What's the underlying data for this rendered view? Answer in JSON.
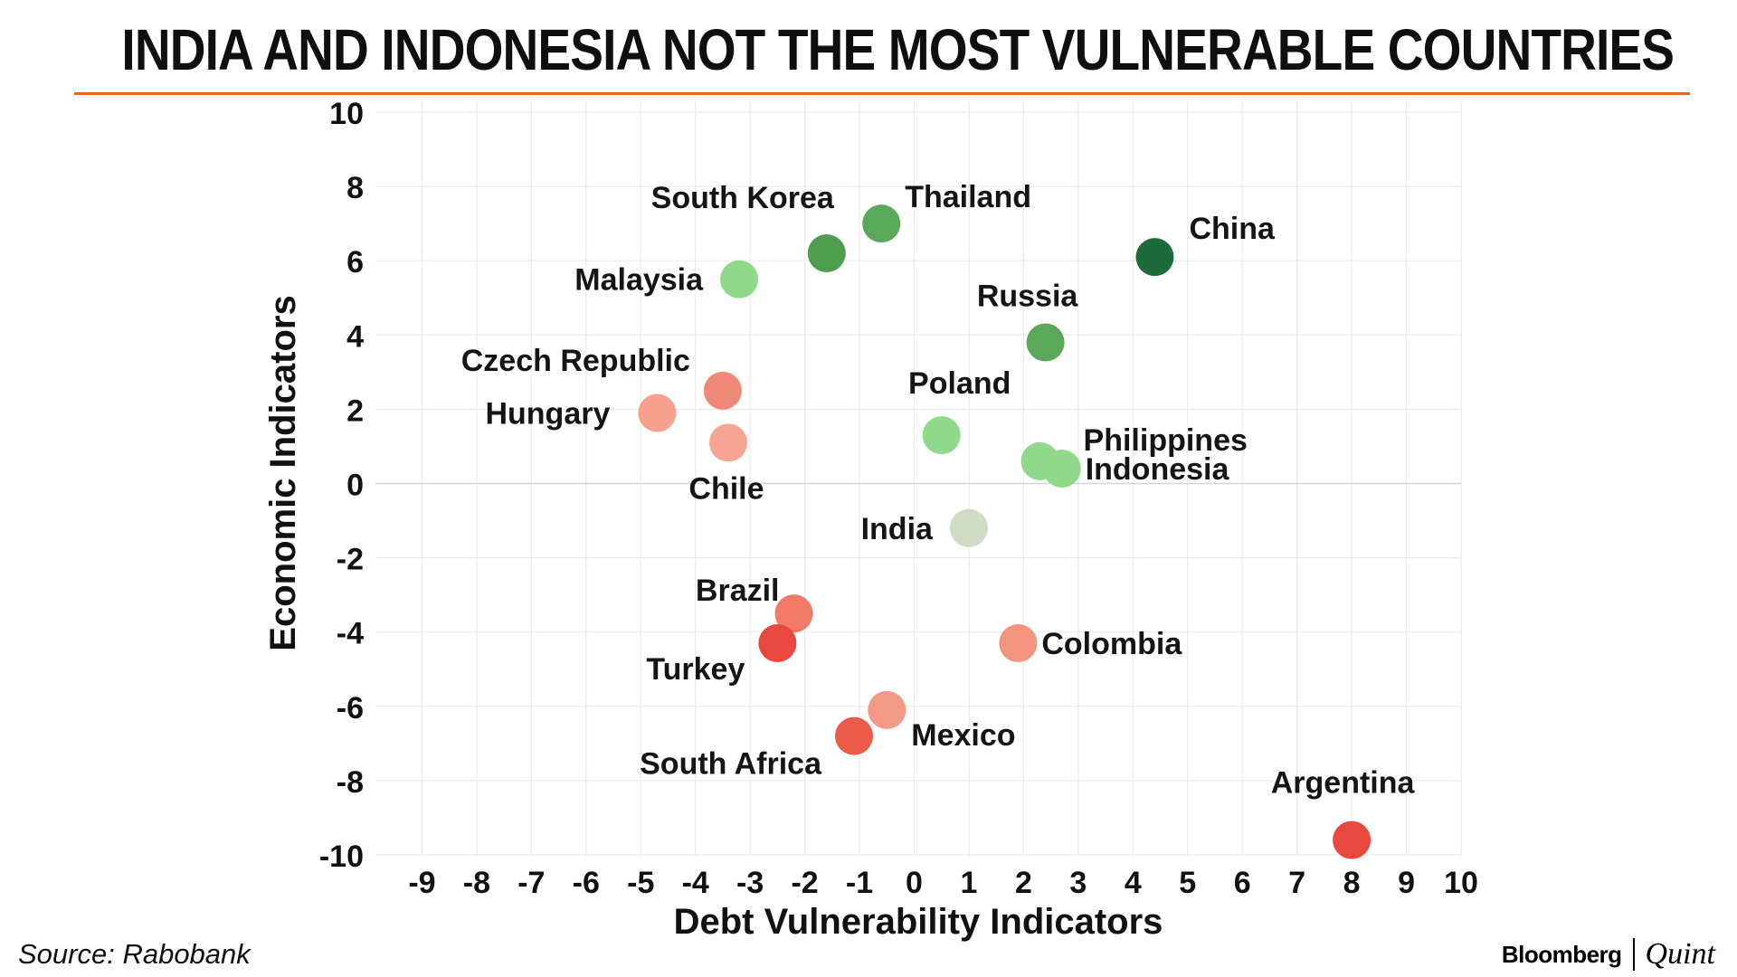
{
  "header": {
    "title": "INDIA AND INDONESIA NOT THE MOST VULNERABLE COUNTRIES"
  },
  "footer": {
    "source": "Source: Rabobank",
    "brand_primary": "Bloomberg",
    "brand_secondary": "Quint"
  },
  "colors": {
    "title_rule": "#e36a1d",
    "grid": "#ebebeb",
    "zero_line": "#d6d6d6"
  },
  "chart_data": {
    "type": "scatter",
    "title": "INDIA AND INDONESIA NOT THE MOST VULNERABLE COUNTRIES",
    "xlabel": "Debt Vulnerability Indicators",
    "ylabel": "Economic Indicators",
    "xlim": [
      -10,
      10
    ],
    "ylim": [
      -10,
      10
    ],
    "x_ticks": [
      -9,
      -8,
      -7,
      -6,
      -5,
      -4,
      -3,
      -2,
      -1,
      0,
      1,
      2,
      3,
      4,
      5,
      6,
      7,
      8,
      9,
      10
    ],
    "y_ticks": [
      10,
      8,
      6,
      4,
      2,
      0,
      -2,
      -4,
      -6,
      -8,
      -10
    ],
    "grid": true,
    "points": [
      {
        "label": "South Korea",
        "x": -1.6,
        "y": 6.2,
        "color": "#4e9e4e",
        "label_pos": "upper-left"
      },
      {
        "label": "Thailand",
        "x": -0.6,
        "y": 7.0,
        "color": "#5aa85a",
        "label_pos": "upper-right"
      },
      {
        "label": "China",
        "x": 4.4,
        "y": 6.1,
        "color": "#1e6b3a",
        "label_pos": "upper-right"
      },
      {
        "label": "Malaysia",
        "x": -3.2,
        "y": 5.5,
        "color": "#90d98a",
        "label_pos": "left"
      },
      {
        "label": "Russia",
        "x": 2.4,
        "y": 3.8,
        "color": "#5aa85a",
        "label_pos": "above"
      },
      {
        "label": "Czech Republic",
        "x": -3.5,
        "y": 2.5,
        "color": "#f08a78",
        "label_pos": "upper-left"
      },
      {
        "label": "Hungary",
        "x": -4.7,
        "y": 1.9,
        "color": "#f6a08e",
        "label_pos": "left"
      },
      {
        "label": "Chile",
        "x": -3.4,
        "y": 1.1,
        "color": "#f7a593",
        "label_pos": "below"
      },
      {
        "label": "Poland",
        "x": 0.5,
        "y": 1.3,
        "color": "#90d98a",
        "label_pos": "upper-left"
      },
      {
        "label": "Philippines",
        "x": 2.3,
        "y": 0.6,
        "color": "#90d98a",
        "label_pos": "upper-right"
      },
      {
        "label": "Indonesia",
        "x": 2.7,
        "y": 0.4,
        "color": "#90d98a",
        "label_pos": "right"
      },
      {
        "label": "India",
        "x": 1.0,
        "y": -1.2,
        "color": "#cfdcc4",
        "label_pos": "left"
      },
      {
        "label": "Brazil",
        "x": -2.2,
        "y": -3.5,
        "color": "#f07a66",
        "label_pos": "upper-left"
      },
      {
        "label": "Turkey",
        "x": -2.5,
        "y": -4.3,
        "color": "#e8483d",
        "label_pos": "lower-left"
      },
      {
        "label": "Colombia",
        "x": 1.9,
        "y": -4.3,
        "color": "#f29480",
        "label_pos": "right"
      },
      {
        "label": "Mexico",
        "x": -0.5,
        "y": -6.1,
        "color": "#f39a86",
        "label_pos": "lower-right"
      },
      {
        "label": "South Africa",
        "x": -1.1,
        "y": -6.8,
        "color": "#ec5a4a",
        "label_pos": "lower-left"
      },
      {
        "label": "Argentina",
        "x": 8.0,
        "y": -9.6,
        "color": "#e8483d",
        "label_pos": "above"
      }
    ]
  }
}
